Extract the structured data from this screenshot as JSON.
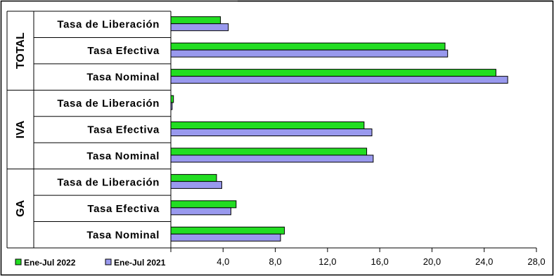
{
  "chart_data": {
    "type": "bar",
    "orientation": "horizontal",
    "groups": [
      {
        "name": "TOTAL",
        "categories": [
          "Tasa de Liberación",
          "Tasa Efectiva",
          "Tasa Nominal"
        ]
      },
      {
        "name": "IVA",
        "categories": [
          "Tasa de Liberación",
          "Tasa Efectiva",
          "Tasa Nominal"
        ]
      },
      {
        "name": "GA",
        "categories": [
          "Tasa de Liberación",
          "Tasa Efectiva",
          "Tasa Nominal"
        ]
      }
    ],
    "series": [
      {
        "name": "Ene-Jul 2022",
        "color": "#22dd22",
        "values": [
          3.8,
          21.0,
          24.9,
          0.2,
          14.8,
          15.0,
          3.5,
          5.0,
          8.7
        ]
      },
      {
        "name": "Ene-Jul 2021",
        "color": "#9999ee",
        "values": [
          4.4,
          21.2,
          25.8,
          0.1,
          15.4,
          15.5,
          3.9,
          4.6,
          8.4
        ]
      }
    ],
    "xlim": [
      0,
      28
    ],
    "xticks": [
      "4,0",
      "8,0",
      "12,0",
      "16,0",
      "20,0",
      "24,0",
      "28,0"
    ],
    "grid": false,
    "legend": "bottom-left"
  }
}
